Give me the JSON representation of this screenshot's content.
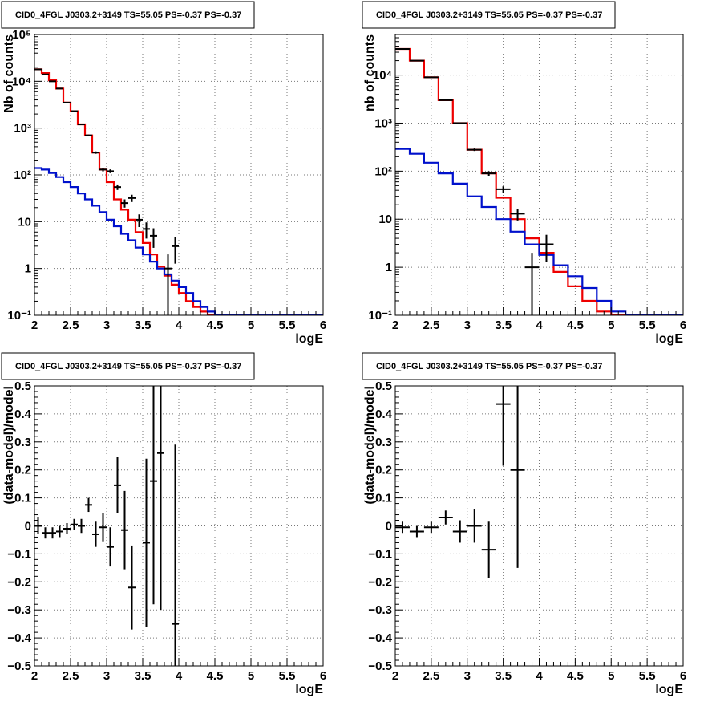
{
  "colors": {
    "data": "#000000",
    "model_total": "#ee0000",
    "model_component": "#0011cc",
    "grid": "#777777"
  },
  "chart_data": [
    {
      "type": "histogram",
      "title": "CID0_4FGL J0303.2+3149 TS=55.05 PS=-0.37 PS=-0.37",
      "xlabel": "logE",
      "ylabel": "Nb of counts",
      "xlim": [
        2,
        6
      ],
      "ylim": [
        0.1,
        100000
      ],
      "yscale": "log",
      "grid": true,
      "x_ticks": [
        "2",
        "2.5",
        "3",
        "3.5",
        "4",
        "4.5",
        "5",
        "5.5",
        "6"
      ],
      "y_ticks": [
        "10⁻¹",
        "1",
        "10",
        "10²",
        "10³",
        "10⁴",
        "10⁵"
      ],
      "bin_width": 0.1,
      "series": [
        {
          "role": "model_total",
          "x_start": 2.0,
          "values": [
            18000,
            15000,
            10500,
            7000,
            3500,
            2300,
            1200,
            700,
            300,
            130,
            70,
            30,
            18,
            11,
            6,
            3.5,
            2,
            1.1,
            0.7,
            0.45,
            0.3,
            0.2,
            0.15,
            0.12,
            0.1,
            0.1,
            0.1,
            0.1,
            0.1,
            0.1,
            0.1,
            0.1,
            0.1,
            0.1,
            0.1,
            0.1,
            0.1,
            0.1,
            0.1,
            0.1
          ]
        },
        {
          "role": "model_component",
          "x_start": 2.0,
          "values": [
            140,
            130,
            110,
            90,
            70,
            55,
            40,
            30,
            22,
            16,
            11,
            8,
            5.5,
            4,
            2.8,
            2,
            1.4,
            1,
            0.75,
            0.55,
            0.4,
            0.3,
            0.2,
            0.15,
            0.12,
            0.1,
            0.1,
            0.1,
            0.1,
            0.1,
            0.1,
            0.1,
            0.1,
            0.1,
            0.1,
            0.1,
            0.1,
            0.1,
            0.1,
            0.1
          ]
        }
      ],
      "points": [
        {
          "x": 2.05,
          "y": 18000
        },
        {
          "x": 2.15,
          "y": 14000
        },
        {
          "x": 2.25,
          "y": 10000
        },
        {
          "x": 2.35,
          "y": 7000
        },
        {
          "x": 2.45,
          "y": 3500
        },
        {
          "x": 2.55,
          "y": 2300
        },
        {
          "x": 2.65,
          "y": 1200
        },
        {
          "x": 2.75,
          "y": 700
        },
        {
          "x": 2.85,
          "y": 300
        },
        {
          "x": 2.95,
          "y": 130
        },
        {
          "x": 3.05,
          "y": 120
        },
        {
          "x": 3.15,
          "y": 55
        },
        {
          "x": 3.25,
          "y": 25
        },
        {
          "x": 3.35,
          "y": 32
        },
        {
          "x": 3.45,
          "y": 11
        },
        {
          "x": 3.55,
          "y": 7
        },
        {
          "x": 3.65,
          "y": 5
        },
        {
          "x": 3.85,
          "y": 1
        },
        {
          "x": 3.95,
          "y": 3
        }
      ]
    },
    {
      "type": "histogram",
      "title": "CID0_4FGL J0303.2+3149 TS=55.05 PS=-0.37 PS=-0.37",
      "xlabel": "logE",
      "ylabel": "nb of counts",
      "xlim": [
        2,
        6
      ],
      "ylim": [
        0.1,
        70000
      ],
      "yscale": "log",
      "grid": true,
      "x_ticks": [
        "2",
        "2.5",
        "3",
        "3.5",
        "4",
        "4.5",
        "5",
        "5.5",
        "6"
      ],
      "y_ticks": [
        "10⁻¹",
        "1",
        "10",
        "10²",
        "10³",
        "10⁴"
      ],
      "bin_width": 0.2,
      "series": [
        {
          "role": "model_total",
          "x_start": 2.0,
          "values": [
            35000,
            20000,
            9000,
            3000,
            1000,
            280,
            90,
            28,
            10,
            4,
            2,
            0.8,
            0.4,
            0.2,
            0.12,
            0.1,
            0.1,
            0.1,
            0.1,
            0.1
          ]
        },
        {
          "role": "model_component",
          "x_start": 2.0,
          "values": [
            290,
            230,
            150,
            90,
            55,
            30,
            18,
            10,
            5.5,
            3,
            1.8,
            1.1,
            0.65,
            0.37,
            0.2,
            0.12,
            0.1,
            0.1,
            0.1,
            0.1
          ]
        }
      ],
      "points": [
        {
          "x": 2.1,
          "y": 35000
        },
        {
          "x": 2.3,
          "y": 20000
        },
        {
          "x": 2.5,
          "y": 9000
        },
        {
          "x": 2.7,
          "y": 3000
        },
        {
          "x": 2.9,
          "y": 1000
        },
        {
          "x": 3.1,
          "y": 280
        },
        {
          "x": 3.3,
          "y": 90
        },
        {
          "x": 3.5,
          "y": 42
        },
        {
          "x": 3.7,
          "y": 13
        },
        {
          "x": 3.9,
          "y": 1
        },
        {
          "x": 4.1,
          "y": 3
        }
      ]
    },
    {
      "type": "scatter",
      "title": "CID0_4FGL J0303.2+3149 TS=55.05 PS=-0.37 PS=-0.37",
      "xlabel": "logE",
      "ylabel": "(data-model)/model",
      "xlim": [
        2,
        6
      ],
      "ylim": [
        -0.5,
        0.5
      ],
      "grid": true,
      "x_ticks": [
        "2",
        "2.5",
        "3",
        "3.5",
        "4",
        "4.5",
        "5",
        "5.5",
        "6"
      ],
      "y_ticks": [
        "−0.5",
        "−0.4",
        "−0.3",
        "−0.2",
        "−0.1",
        "0",
        "0.1",
        "0.2",
        "0.3",
        "0.4",
        "0.5"
      ],
      "points": [
        {
          "x": 2.05,
          "y": 0.0,
          "err": 0.03
        },
        {
          "x": 2.15,
          "y": -0.025,
          "err": 0.02
        },
        {
          "x": 2.25,
          "y": -0.025,
          "err": 0.02
        },
        {
          "x": 2.35,
          "y": -0.02,
          "err": 0.02
        },
        {
          "x": 2.45,
          "y": -0.01,
          "err": 0.02
        },
        {
          "x": 2.55,
          "y": 0.005,
          "err": 0.02
        },
        {
          "x": 2.65,
          "y": 0.0,
          "err": 0.025
        },
        {
          "x": 2.75,
          "y": 0.075,
          "err": 0.025
        },
        {
          "x": 2.85,
          "y": -0.03,
          "err": 0.045
        },
        {
          "x": 2.95,
          "y": -0.005,
          "err": 0.05
        },
        {
          "x": 3.05,
          "y": -0.075,
          "err": 0.07
        },
        {
          "x": 3.15,
          "y": 0.145,
          "err": 0.1
        },
        {
          "x": 3.25,
          "y": -0.015,
          "err": 0.14
        },
        {
          "x": 3.35,
          "y": -0.22,
          "err": 0.15
        },
        {
          "x": 3.55,
          "y": -0.06,
          "err": 0.3
        },
        {
          "x": 3.65,
          "y": 0.16,
          "err": 0.44
        },
        {
          "x": 3.75,
          "y": 0.26,
          "err": 0.56
        },
        {
          "x": 3.95,
          "y": -0.35,
          "err": 0.64
        }
      ]
    },
    {
      "type": "scatter",
      "title": "CID0_4FGL J0303.2+3149 TS=55.05 PS=-0.37 PS=-0.37",
      "xlabel": "logE",
      "ylabel": "(data-model)/model",
      "xlim": [
        2,
        6
      ],
      "ylim": [
        -0.5,
        0.5
      ],
      "grid": true,
      "x_ticks": [
        "2",
        "2.5",
        "3",
        "3.5",
        "4",
        "4.5",
        "5",
        "5.5",
        "6"
      ],
      "y_ticks": [
        "−0.5",
        "−0.4",
        "−0.3",
        "−0.2",
        "−0.1",
        "0",
        "0.1",
        "0.2",
        "0.3",
        "0.4",
        "0.5"
      ],
      "points": [
        {
          "x": 2.1,
          "y": -0.005,
          "err": 0.02
        },
        {
          "x": 2.3,
          "y": -0.02,
          "err": 0.02
        },
        {
          "x": 2.5,
          "y": -0.005,
          "err": 0.02
        },
        {
          "x": 2.7,
          "y": 0.03,
          "err": 0.025
        },
        {
          "x": 2.9,
          "y": -0.02,
          "err": 0.04
        },
        {
          "x": 3.1,
          "y": 0.0,
          "err": 0.06
        },
        {
          "x": 3.3,
          "y": -0.085,
          "err": 0.1
        },
        {
          "x": 3.5,
          "y": 0.435,
          "err": 0.22
        },
        {
          "x": 3.7,
          "y": 0.2,
          "err": 0.35
        }
      ]
    }
  ]
}
